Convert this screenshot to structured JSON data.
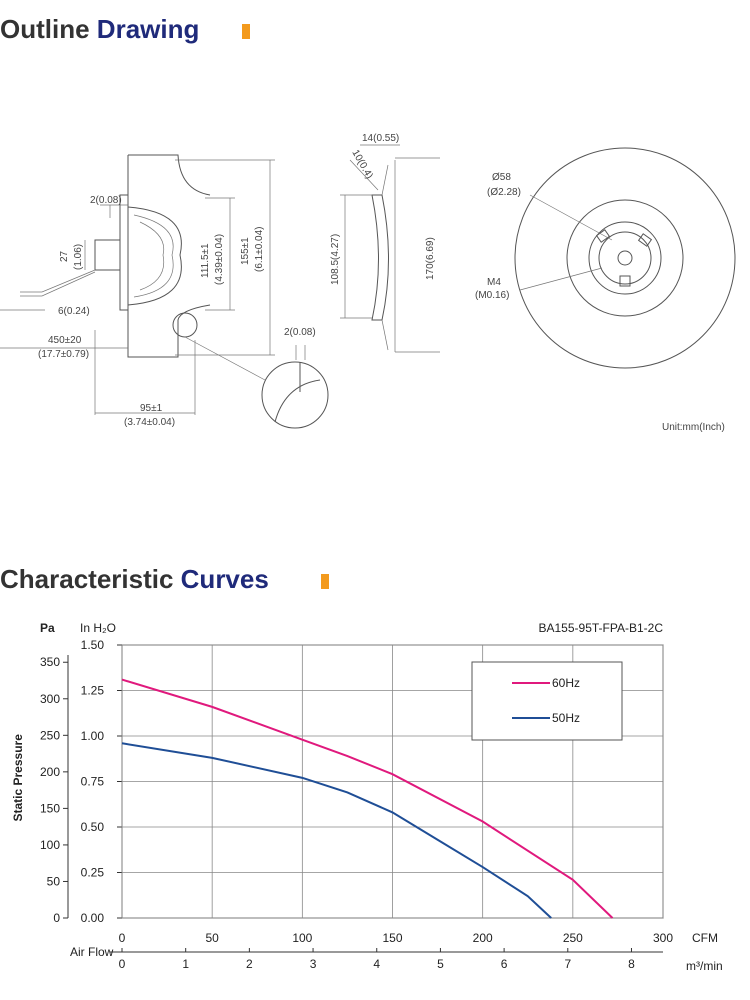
{
  "header": {
    "title_part1": "Outline",
    "title_part2": "Drawing"
  },
  "drawing": {
    "labels": [
      "14(0.55)",
      "10(0.4)",
      "2(0.08)",
      "27",
      "(1.06)",
      "6(0.24)",
      "450±20",
      "(17.7±0.79)",
      "111.5±1",
      "(4.39±0.04)",
      "155±1",
      "(6.1±0.04)",
      "108.5(4.27)",
      "170(6.69)",
      "2(0.08)",
      "95±1",
      "(3.74±0.04)",
      "Ø58",
      "(Ø2.28)",
      "M4",
      "(M0.16)"
    ],
    "unit": "Unit:mm(Inch)"
  },
  "chart_heading": {
    "part1": "Characteristic",
    "part2": "Curves"
  },
  "chart_data": {
    "type": "line",
    "title": "BA155-95T-FPA-B1-2C",
    "ylabel": "Static Pressure",
    "y_unit": "In H₂O",
    "y2_unit": "Pa",
    "xlabel": "Air Flow",
    "x_unit": "CFM",
    "x2_unit": "m³/min",
    "xlim": [
      0,
      300
    ],
    "xticks": [
      0,
      50,
      100,
      150,
      200,
      250,
      300
    ],
    "x2lim": [
      0,
      8.495
    ],
    "x2ticks": [
      0,
      1,
      2,
      3,
      4,
      5,
      6,
      7,
      8
    ],
    "ylim": [
      0,
      1.5
    ],
    "yticks": [
      {
        "value": 0,
        "label": "0.00"
      },
      {
        "value": 0.25,
        "label": "0.25"
      },
      {
        "value": 0.5,
        "label": "0.50"
      },
      {
        "value": 0.75,
        "label": "0.75"
      },
      {
        "value": 1,
        "label": "1.00"
      },
      {
        "value": 1.25,
        "label": "1.25"
      },
      {
        "value": 1.5,
        "label": "1.50"
      }
    ],
    "y2lim": [
      0,
      373.6
    ],
    "y2ticks": [
      0,
      50,
      100,
      150,
      200,
      250,
      300,
      350
    ],
    "grid": true,
    "series": [
      {
        "name": "60Hz",
        "color": "#e0197d",
        "x": [
          0,
          50,
          100,
          125,
          150,
          200,
          250,
          272
        ],
        "values": [
          1.31,
          1.16,
          0.98,
          0.89,
          0.79,
          0.53,
          0.21,
          0
        ]
      },
      {
        "name": "50Hz",
        "color": "#1f4e96",
        "x": [
          0,
          50,
          100,
          125,
          150,
          175,
          200,
          225,
          238
        ],
        "values": [
          0.96,
          0.88,
          0.77,
          0.69,
          0.58,
          0.43,
          0.28,
          0.12,
          0
        ]
      }
    ]
  }
}
